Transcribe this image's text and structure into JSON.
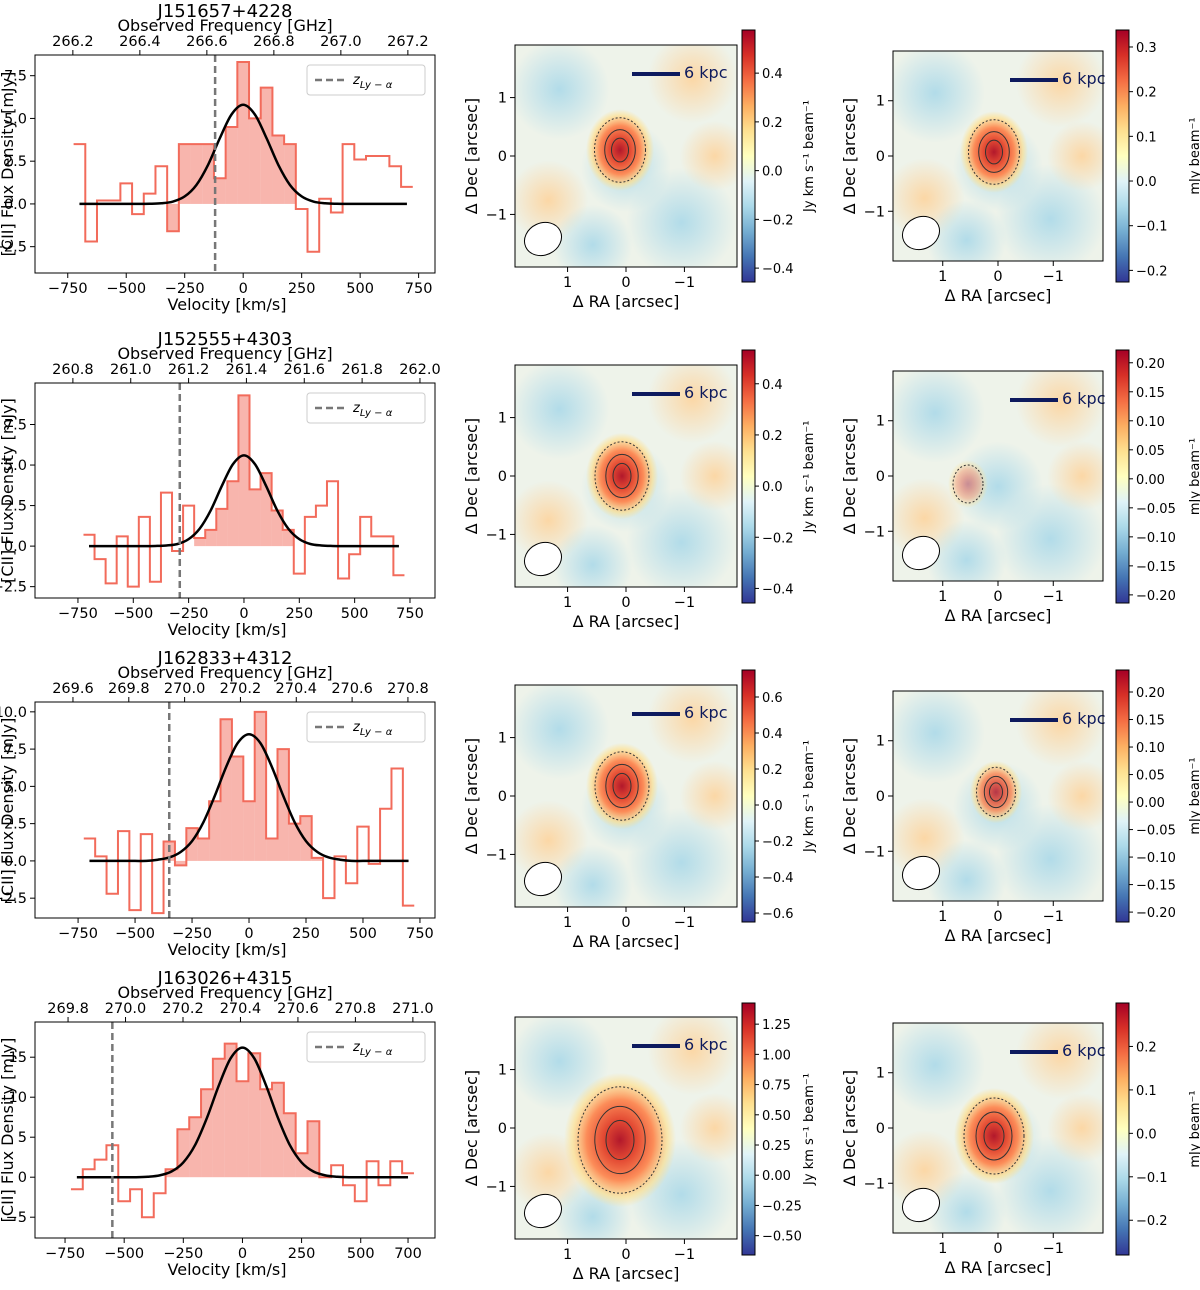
{
  "chart_data": [
    {
      "type": "spectrum",
      "title": "J151657+4228",
      "x2label": "Observed Frequency [GHz]",
      "xlabel": "Velocity [km/s]",
      "ylabel": "[CII] Flux Density [mJy]",
      "x": [
        -700,
        -650,
        -600,
        -550,
        -500,
        -450,
        -400,
        -350,
        -300,
        -250,
        -200,
        -150,
        -100,
        -50,
        0,
        50,
        100,
        150,
        200,
        250,
        300,
        350,
        400,
        450,
        500,
        550,
        600,
        650,
        700
      ],
      "spectrum": {
        "color": "#f26b5b",
        "values": [
          3.5,
          -2.2,
          0.2,
          0.2,
          1.2,
          -0.6,
          0.6,
          2.2,
          -1.6,
          3.5,
          3.5,
          3.5,
          1.5,
          4.5,
          8.3,
          5.0,
          6.8,
          4.0,
          3.5,
          -0.3,
          -2.8,
          0.3,
          -0.5,
          3.5,
          2.6,
          2.8,
          2.8,
          2.2,
          1.0
        ]
      },
      "fit": {
        "color": "#000000",
        "values": [
          0,
          0,
          0,
          0,
          0,
          0,
          0.01,
          0.04,
          0.14,
          0.44,
          1.11,
          2.29,
          3.84,
          5.23,
          5.8,
          5.23,
          3.84,
          2.29,
          1.11,
          0.44,
          0.14,
          0.04,
          0.01,
          0,
          0,
          0,
          0,
          0,
          0
        ]
      },
      "fill_range": [
        -300,
        225
      ],
      "reference_line": {
        "x": -120,
        "name": "z",
        "subscript": "Ly − α",
        "color": "#777777"
      },
      "legend": "upper right",
      "xlim": [
        -890,
        820
      ],
      "ylim": [
        -4.04,
        8.71
      ],
      "xticks": [
        {
          "value": -750,
          "label": "−750"
        },
        {
          "value": -500,
          "label": "−500"
        },
        {
          "value": -250,
          "label": "−250"
        },
        0,
        250,
        500,
        750
      ],
      "yticks": [
        {
          "value": -2.5,
          "label": "−2.5"
        },
        {
          "value": 0,
          "label": "0.0"
        },
        2.5,
        {
          "value": 5,
          "label": "5.0"
        },
        7.5
      ],
      "x2lim": [
        266.087,
        267.281
      ],
      "x2ticks": [
        266.2,
        266.4,
        266.6,
        266.8,
        {
          "value": 267,
          "label": "267.0"
        },
        267.2
      ]
    },
    {
      "type": "map",
      "xlabel": "Δ RA [arcsec]",
      "ylabel": "Δ Dec [arcsec]",
      "xlim": [
        1.9,
        -1.9
      ],
      "ylim": [
        -1.9,
        1.9
      ],
      "xticks": [
        1,
        0,
        {
          "value": -1,
          "label": "−1"
        }
      ],
      "yticks": [
        {
          "value": -1,
          "label": "−1"
        },
        0,
        1
      ],
      "colorbar_label": "Jy km s⁻¹ beam⁻¹",
      "colormap": "RdYlBu_r",
      "clim": [
        -0.457,
        0.577
      ],
      "cticks": [
        {
          "value": -0.4,
          "label": "−0.4"
        },
        {
          "value": -0.2,
          "label": "−0.2"
        },
        {
          "value": 0,
          "label": "0.0"
        },
        0.2,
        0.4
      ],
      "scale_bar": "6 kpc"
    },
    {
      "type": "map",
      "xlabel": "Δ RA [arcsec]",
      "ylabel": "Δ Dec [arcsec]",
      "xlim": [
        1.9,
        -1.9
      ],
      "ylim": [
        -1.9,
        1.9
      ],
      "xticks": [
        1,
        0,
        {
          "value": -1,
          "label": "−1"
        }
      ],
      "yticks": [
        {
          "value": -1,
          "label": "−1"
        },
        0,
        1
      ],
      "colorbar_label": "mJy beam⁻¹",
      "colormap": "RdYlBu_r",
      "clim": [
        -0.226,
        0.338
      ],
      "cticks": [
        {
          "value": -0.2,
          "label": "−0.2"
        },
        {
          "value": -0.1,
          "label": "−0.1"
        },
        {
          "value": 0,
          "label": "0.0"
        },
        0.1,
        0.2,
        0.3
      ],
      "scale_bar": "6 kpc"
    },
    {
      "type": "spectrum",
      "title": "J152555+4303",
      "x2label": "Observed Frequency [GHz]",
      "xlabel": "Velocity [km/s]",
      "ylabel": "[CII] Flux Density [mJy]",
      "x": [
        -700,
        -650,
        -600,
        -550,
        -500,
        -450,
        -400,
        -350,
        -300,
        -250,
        -200,
        -150,
        -100,
        -50,
        0,
        50,
        100,
        150,
        200,
        250,
        300,
        350,
        400,
        450,
        500,
        550,
        600,
        650,
        700
      ],
      "spectrum": {
        "color": "#f26b5b",
        "values": [
          0.7,
          -0.8,
          -2.3,
          0.6,
          -2.5,
          1.8,
          -2.2,
          3.3,
          -0.3,
          2.5,
          0.5,
          1.0,
          2.3,
          4.0,
          9.3,
          3.5,
          4.5,
          2.2,
          1.0,
          -1.7,
          1.8,
          2.5,
          4.0,
          -2.0,
          -0.5,
          1.8,
          0.6,
          0.6,
          -1.8
        ]
      },
      "fit": {
        "color": "#000000",
        "values": [
          0,
          0,
          0,
          0,
          0,
          0,
          0.01,
          0.04,
          0.13,
          0.43,
          1.08,
          2.21,
          3.71,
          5.05,
          5.6,
          5.05,
          3.71,
          2.21,
          1.08,
          0.43,
          0.13,
          0.04,
          0.01,
          0,
          0,
          0,
          0,
          0,
          0
        ]
      },
      "fill_range": [
        -225,
        225
      ],
      "reference_line": {
        "x": -290,
        "name": "z",
        "subscript": "Ly − α",
        "color": "#777777"
      },
      "legend": "upper right",
      "xlim": [
        -944,
        863
      ],
      "ylim": [
        -3.2,
        10.06
      ],
      "xticks": [
        {
          "value": -750,
          "label": "−750"
        },
        {
          "value": -500,
          "label": "−500"
        },
        {
          "value": -250,
          "label": "−250"
        },
        0,
        250,
        500,
        750
      ],
      "yticks": [
        {
          "value": -2.5,
          "label": "−2.5"
        },
        {
          "value": 0,
          "label": "0.0"
        },
        2.5,
        {
          "value": 5,
          "label": "5.0"
        },
        7.5
      ],
      "x2lim": [
        260.669,
        262.052
      ],
      "x2ticks": [
        260.8,
        {
          "value": 261,
          "label": "261.0"
        },
        261.2,
        261.4,
        261.6,
        261.8,
        {
          "value": 262,
          "label": "262.0"
        }
      ]
    },
    {
      "type": "map",
      "xlabel": "Δ RA [arcsec]",
      "ylabel": "Δ Dec [arcsec]",
      "xlim": [
        1.9,
        -1.9
      ],
      "ylim": [
        -1.9,
        1.9
      ],
      "xticks": [
        1,
        0,
        {
          "value": -1,
          "label": "−1"
        }
      ],
      "yticks": [
        {
          "value": -1,
          "label": "−1"
        },
        0,
        1
      ],
      "colorbar_label": "Jy km s⁻¹ beam⁻¹",
      "colormap": "RdYlBu_r",
      "clim": [
        -0.457,
        0.532
      ],
      "cticks": [
        {
          "value": -0.4,
          "label": "−0.4"
        },
        {
          "value": -0.2,
          "label": "−0.2"
        },
        {
          "value": 0,
          "label": "0.0"
        },
        0.2,
        0.4
      ],
      "scale_bar": "6 kpc"
    },
    {
      "type": "map",
      "xlabel": "Δ RA [arcsec]",
      "ylabel": "Δ Dec [arcsec]",
      "xlim": [
        1.9,
        -1.9
      ],
      "ylim": [
        -1.9,
        1.9
      ],
      "xticks": [
        1,
        0,
        {
          "value": -1,
          "label": "−1"
        }
      ],
      "yticks": [
        {
          "value": -1,
          "label": "−1"
        },
        0,
        1
      ],
      "colorbar_label": "mJy beam⁻¹",
      "colormap": "RdYlBu_r",
      "clim": [
        -0.214,
        0.222
      ],
      "cticks": [
        {
          "value": -0.2,
          "label": "−0.20"
        },
        {
          "value": -0.15,
          "label": "−0.15"
        },
        {
          "value": -0.1,
          "label": "−0.10"
        },
        {
          "value": -0.05,
          "label": "−0.05"
        },
        {
          "value": 0,
          "label": "0.00"
        },
        0.05,
        {
          "value": 0.1,
          "label": "0.10"
        },
        0.15,
        {
          "value": 0.2,
          "label": "0.20"
        }
      ],
      "scale_bar": "6 kpc"
    },
    {
      "type": "spectrum",
      "title": "J162833+4312",
      "x2label": "Observed Frequency [GHz]",
      "xlabel": "Velocity [km/s]",
      "ylabel": "[CII] Flux Density [mJy]",
      "x": [
        -700,
        -650,
        -600,
        -550,
        -500,
        -450,
        -400,
        -350,
        -300,
        -250,
        -200,
        -150,
        -100,
        -50,
        0,
        50,
        100,
        150,
        200,
        250,
        300,
        350,
        400,
        450,
        500,
        550,
        600,
        650,
        700
      ],
      "spectrum": {
        "color": "#f26b5b",
        "values": [
          1.5,
          0.3,
          -2.2,
          2.0,
          -3.3,
          1.8,
          -3.5,
          1.3,
          -0.3,
          2.2,
          1.5,
          4.0,
          9.5,
          7.0,
          4.0,
          10.0,
          1.5,
          7.5,
          2.5,
          3.0,
          0.2,
          -2.5,
          0.3,
          -1.5,
          2.3,
          -0.2,
          3.5,
          6.2,
          -3.0
        ]
      },
      "fit": {
        "color": "#000000",
        "values": [
          0,
          0,
          0,
          0,
          0,
          0,
          0.08,
          0.23,
          0.6,
          1.33,
          2.6,
          4.37,
          6.32,
          7.9,
          8.5,
          7.9,
          6.32,
          4.37,
          2.6,
          1.33,
          0.6,
          0.23,
          0.08,
          0,
          0,
          0,
          0,
          0,
          0
        ]
      },
      "fill_range": [
        -350,
        300
      ],
      "reference_line": {
        "x": -350,
        "name": "z",
        "subscript": "Ly − α",
        "color": "#777777"
      },
      "legend": "upper right",
      "xlim": [
        -939,
        816
      ],
      "ylim": [
        -3.83,
        10.66
      ],
      "xticks": [
        {
          "value": -750,
          "label": "−750"
        },
        {
          "value": -500,
          "label": "−500"
        },
        {
          "value": -250,
          "label": "−250"
        },
        0,
        250,
        500,
        750
      ],
      "yticks": [
        {
          "value": -2.5,
          "label": "−2.5"
        },
        {
          "value": 0,
          "label": "0.0"
        },
        2.5,
        {
          "value": 5,
          "label": "5.0"
        },
        7.5,
        {
          "value": 10,
          "label": "10.0"
        }
      ],
      "x2lim": [
        269.464,
        270.897
      ],
      "x2ticks": [
        269.6,
        269.8,
        {
          "value": 270,
          "label": "270.0"
        },
        270.2,
        270.4,
        270.6,
        270.8
      ]
    },
    {
      "type": "map",
      "xlabel": "Δ RA [arcsec]",
      "ylabel": "Δ Dec [arcsec]",
      "xlim": [
        1.9,
        -1.9
      ],
      "ylim": [
        -1.9,
        1.9
      ],
      "xticks": [
        1,
        0,
        {
          "value": -1,
          "label": "−1"
        }
      ],
      "yticks": [
        {
          "value": -1,
          "label": "−1"
        },
        0,
        1
      ],
      "colorbar_label": "Jy km s⁻¹ beam⁻¹",
      "colormap": "RdYlBu_r",
      "clim": [
        -0.65,
        0.75
      ],
      "cticks": [
        {
          "value": -0.6,
          "label": "−0.6"
        },
        {
          "value": -0.4,
          "label": "−0.4"
        },
        {
          "value": -0.2,
          "label": "−0.2"
        },
        {
          "value": 0,
          "label": "0.0"
        },
        0.2,
        0.4,
        0.6
      ],
      "scale_bar": "6 kpc"
    },
    {
      "type": "map",
      "xlabel": "Δ RA [arcsec]",
      "ylabel": "Δ Dec [arcsec]",
      "xlim": [
        1.9,
        -1.9
      ],
      "ylim": [
        -1.9,
        1.9
      ],
      "xticks": [
        1,
        0,
        {
          "value": -1,
          "label": "−1"
        }
      ],
      "yticks": [
        {
          "value": -1,
          "label": "−1"
        },
        0,
        1
      ],
      "colorbar_label": "mJy beam⁻¹",
      "colormap": "RdYlBu_r",
      "clim": [
        -0.218,
        0.24
      ],
      "cticks": [
        {
          "value": -0.2,
          "label": "−0.20"
        },
        {
          "value": -0.15,
          "label": "−0.15"
        },
        {
          "value": -0.1,
          "label": "−0.10"
        },
        {
          "value": -0.05,
          "label": "−0.05"
        },
        {
          "value": 0,
          "label": "0.00"
        },
        0.05,
        {
          "value": 0.1,
          "label": "0.10"
        },
        0.15,
        {
          "value": 0.2,
          "label": "0.20"
        }
      ],
      "scale_bar": "6 kpc"
    },
    {
      "type": "spectrum",
      "title": "J163026+4315",
      "x2label": "Observed Frequency [GHz]",
      "xlabel": "Velocity [km/s]",
      "ylabel": "[CII] Flux Density [mJy]",
      "x": [
        -700,
        -650,
        -600,
        -550,
        -500,
        -450,
        -400,
        -350,
        -300,
        -250,
        -200,
        -150,
        -100,
        -50,
        0,
        50,
        100,
        150,
        200,
        250,
        300,
        350,
        400,
        450,
        500,
        550,
        600,
        650,
        700
      ],
      "spectrum": {
        "color": "#f26b5b",
        "values": [
          -1.5,
          1.0,
          2.2,
          4.0,
          -3.0,
          -1.5,
          -5.0,
          -2.0,
          1.0,
          6.0,
          7.5,
          11.0,
          14.8,
          16.7,
          12.0,
          15.5,
          11.0,
          11.8,
          8.0,
          3.0,
          7.0,
          0.0,
          1.5,
          -1.0,
          -3.0,
          2.0,
          -1.0,
          2.0,
          0.5
        ]
      },
      "fit": {
        "color": "#000000",
        "values": [
          0,
          0,
          0,
          0,
          0,
          0,
          0.06,
          0.23,
          0.71,
          1.85,
          4.03,
          7.42,
          11.45,
          14.86,
          16.2,
          14.86,
          11.45,
          7.42,
          4.03,
          1.85,
          0.71,
          0.23,
          0.06,
          0,
          0,
          0,
          0,
          0,
          0
        ]
      },
      "fill_range": [
        -300,
        300
      ],
      "reference_line": {
        "x": -550,
        "name": "z",
        "subscript": "Ly − α",
        "color": "#777777"
      },
      "legend": "upper right",
      "xlim": [
        -877,
        814
      ],
      "ylim": [
        -7.6,
        19.4
      ],
      "xticks": [
        {
          "value": -750,
          "label": "−750"
        },
        {
          "value": -500,
          "label": "−500"
        },
        {
          "value": -250,
          "label": "−250"
        },
        0,
        250,
        500,
        700
      ],
      "yticks": [
        {
          "value": -5,
          "label": "−5"
        },
        0,
        5,
        10,
        15
      ],
      "x2lim": [
        269.685,
        271.077
      ],
      "x2ticks": [
        269.8,
        {
          "value": 270,
          "label": "270.0"
        },
        270.2,
        270.4,
        270.6,
        270.8,
        {
          "value": 271,
          "label": "271.0"
        }
      ]
    },
    {
      "type": "map",
      "xlabel": "Δ RA [arcsec]",
      "ylabel": "Δ Dec [arcsec]",
      "xlim": [
        1.9,
        -1.9
      ],
      "ylim": [
        -1.9,
        1.9
      ],
      "xticks": [
        1,
        0,
        {
          "value": -1,
          "label": "−1"
        }
      ],
      "yticks": [
        {
          "value": -1,
          "label": "−1"
        },
        0,
        1
      ],
      "colorbar_label": "Jy km s⁻¹ beam⁻¹",
      "colormap": "RdYlBu_r",
      "clim": [
        -0.66,
        1.425
      ],
      "cticks": [
        {
          "value": -0.5,
          "label": "−0.50"
        },
        {
          "value": -0.25,
          "label": "−0.25"
        },
        {
          "value": 0,
          "label": "0.00"
        },
        0.25,
        {
          "value": 0.5,
          "label": "0.50"
        },
        0.75,
        {
          "value": 1,
          "label": "1.00"
        },
        1.25
      ],
      "scale_bar": "6 kpc"
    },
    {
      "type": "map",
      "xlabel": "Δ RA [arcsec]",
      "ylabel": "Δ Dec [arcsec]",
      "xlim": [
        1.9,
        -1.9
      ],
      "ylim": [
        -1.9,
        1.9
      ],
      "xticks": [
        1,
        0,
        {
          "value": -1,
          "label": "−1"
        }
      ],
      "yticks": [
        {
          "value": -1,
          "label": "−1"
        },
        0,
        1
      ],
      "colorbar_label": "mJy beam⁻¹",
      "colormap": "RdYlBu_r",
      "clim": [
        -0.28,
        0.3
      ],
      "cticks": [
        {
          "value": -0.2,
          "label": "−0.2"
        },
        {
          "value": -0.1,
          "label": "−0.1"
        },
        {
          "value": 0,
          "label": "0.0"
        },
        0.1,
        0.2
      ],
      "scale_bar": "6 kpc"
    }
  ]
}
